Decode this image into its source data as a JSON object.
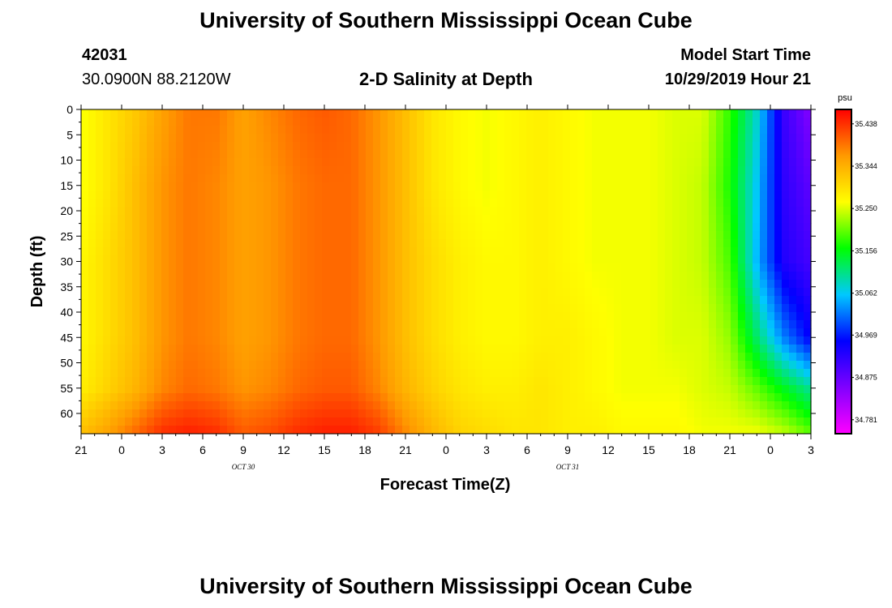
{
  "page": {
    "title_top": "University of Southern Mississippi Ocean Cube",
    "title_bottom": "University of Southern Mississippi Ocean Cube",
    "station_id": "42031",
    "location": "30.0900N 88.2120W",
    "plot_title": "2-D Salinity at Depth",
    "model_label": "Model Start Time",
    "model_time": "10/29/2019 Hour 21"
  },
  "chart_data": {
    "type": "heatmap",
    "title": "2-D Salinity at Depth",
    "xlabel": "Forecast Time(Z)",
    "ylabel": "Depth (ft)",
    "x_tick_labels": [
      "21",
      "0",
      "3",
      "6",
      "9",
      "12",
      "15",
      "18",
      "21",
      "0",
      "3",
      "6",
      "9",
      "12",
      "15",
      "18",
      "21",
      "0",
      "3"
    ],
    "x_date_labels": [
      {
        "label": "OCT 30",
        "hour_index": 4
      },
      {
        "label": "OCT 31",
        "hour_index": 12
      }
    ],
    "x_hours_since_start": [
      0,
      3,
      6,
      9,
      12,
      15,
      18,
      21,
      24,
      27,
      30,
      33,
      36,
      39,
      42,
      45,
      48,
      51,
      54
    ],
    "xlim": [
      0,
      54
    ],
    "y_ticks": [
      0,
      5,
      10,
      15,
      20,
      25,
      30,
      35,
      40,
      45,
      50,
      55,
      60
    ],
    "ylim": [
      0,
      64
    ],
    "colorbar": {
      "unit": "psu",
      "ticks": [
        35.438,
        35.344,
        35.25,
        35.156,
        35.062,
        34.969,
        34.875,
        34.781
      ],
      "range": [
        34.75,
        35.47
      ],
      "colors": [
        "#ff00ff",
        "#8000ff",
        "#0000ff",
        "#00c8ff",
        "#00ff00",
        "#ffff00",
        "#ff9a00",
        "#ff0000"
      ]
    },
    "field": {
      "x_hours": [
        0,
        2,
        4,
        6,
        8,
        10,
        12,
        14,
        16,
        18,
        20,
        22,
        24,
        26,
        28,
        30,
        32,
        34,
        36,
        38,
        40,
        42,
        44,
        46,
        48,
        50,
        52,
        54
      ],
      "rows": [
        {
          "depth": 0,
          "values": [
            35.26,
            35.29,
            35.32,
            35.36,
            35.39,
            35.39,
            35.36,
            35.38,
            35.4,
            35.41,
            35.4,
            35.37,
            35.33,
            35.29,
            35.27,
            35.26,
            35.27,
            35.28,
            35.27,
            35.26,
            35.26,
            35.26,
            35.25,
            35.25,
            35.18,
            35.08,
            34.91,
            34.85
          ]
        },
        {
          "depth": 15,
          "values": [
            35.26,
            35.29,
            35.33,
            35.37,
            35.39,
            35.38,
            35.36,
            35.37,
            35.39,
            35.4,
            35.4,
            35.37,
            35.33,
            35.29,
            35.27,
            35.26,
            35.27,
            35.28,
            35.27,
            35.26,
            35.26,
            35.26,
            35.25,
            35.24,
            35.17,
            35.06,
            34.92,
            34.88
          ]
        },
        {
          "depth": 30,
          "values": [
            35.27,
            35.3,
            35.33,
            35.37,
            35.39,
            35.38,
            35.36,
            35.37,
            35.39,
            35.4,
            35.4,
            35.37,
            35.33,
            35.3,
            35.28,
            35.27,
            35.27,
            35.28,
            35.27,
            35.26,
            35.26,
            35.26,
            35.25,
            35.24,
            35.19,
            35.05,
            34.93,
            34.9
          ]
        },
        {
          "depth": 45,
          "values": [
            35.27,
            35.3,
            35.33,
            35.37,
            35.39,
            35.38,
            35.36,
            35.37,
            35.39,
            35.4,
            35.4,
            35.37,
            35.33,
            35.3,
            35.28,
            35.27,
            35.27,
            35.28,
            35.28,
            35.27,
            35.26,
            35.26,
            35.25,
            35.25,
            35.22,
            35.12,
            35.02,
            34.95
          ]
        },
        {
          "depth": 55,
          "values": [
            35.28,
            35.31,
            35.34,
            35.38,
            35.4,
            35.39,
            35.37,
            35.38,
            35.4,
            35.41,
            35.41,
            35.38,
            35.34,
            35.31,
            35.29,
            35.28,
            35.28,
            35.29,
            35.28,
            35.27,
            35.26,
            35.26,
            35.26,
            35.25,
            35.24,
            35.2,
            35.15,
            35.1
          ]
        },
        {
          "depth": 64,
          "values": [
            35.33,
            35.36,
            35.4,
            35.44,
            35.45,
            35.44,
            35.41,
            35.42,
            35.44,
            35.45,
            35.45,
            35.43,
            35.38,
            35.34,
            35.31,
            35.3,
            35.29,
            35.29,
            35.28,
            35.28,
            35.27,
            35.27,
            35.27,
            35.26,
            35.26,
            35.26,
            35.24,
            35.2
          ]
        }
      ]
    }
  }
}
